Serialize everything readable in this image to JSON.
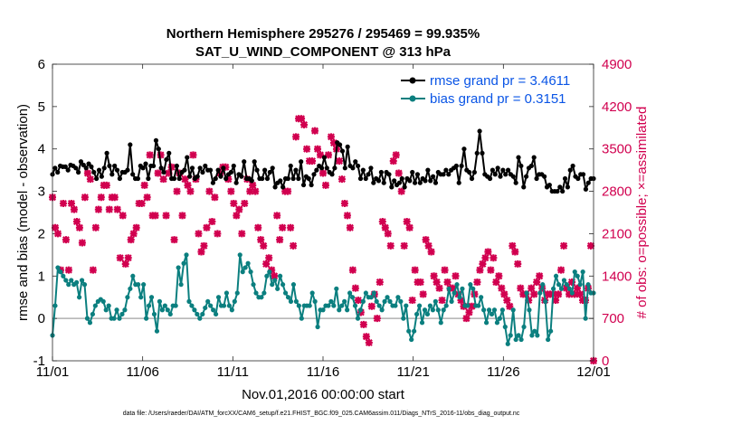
{
  "chart_data": {
    "type": "line",
    "title": "Northern Hemisphere 295276 / 295469 = 99.935%",
    "subtitle": "SAT_U_WIND_COMPONENT @ 313 hPa",
    "xlabel": "Nov.01,2016 00:00:00 start",
    "ylabel": "rmse and bias (model - observation)",
    "ylabel_right": "# of obs: o=possible; ×=assimilated",
    "x_ticks": [
      "11/01",
      "11/06",
      "11/11",
      "11/16",
      "11/21",
      "11/26",
      "12/01"
    ],
    "x_range_days": [
      0,
      30
    ],
    "ylim": [
      -1,
      6
    ],
    "y_ticks": [
      "-1",
      "0",
      "1",
      "2",
      "3",
      "4",
      "5",
      "6"
    ],
    "ylim_right": [
      0,
      4900
    ],
    "y_ticks_right": [
      "0",
      "700",
      "1400",
      "2100",
      "2800",
      "3500",
      "4200",
      "4900"
    ],
    "zero_line": 0,
    "legend_position": "top-right",
    "footer": "data file: /Users/raeder/DAI/ATM_forcXX/CAM6_setup/f.e21.FHIST_BGC.f09_025.CAM6assim.011/Diags_NTrS_2016-11/obs_diag_output.nc",
    "colors": {
      "rmse": "#000000",
      "bias": "#0b7f7f",
      "obs": "#d1004f",
      "legend_text": "#0a55e6",
      "zero_line": "#b0b0b0"
    },
    "series": [
      {
        "name": "rmse grand pr = 3.4611",
        "key": "rmse",
        "values": [
          3.4,
          3.55,
          3.45,
          3.6,
          3.58,
          3.58,
          3.5,
          3.62,
          3.6,
          3.55,
          3.45,
          3.7,
          3.62,
          3.55,
          3.65,
          3.58,
          3.45,
          3.3,
          3.5,
          3.35,
          3.55,
          3.9,
          3.6,
          3.4,
          3.6,
          3.5,
          3.3,
          3.45,
          3.45,
          3.5,
          4.1,
          3.4,
          3.3,
          3.3,
          3.6,
          3.55,
          3.65,
          3.3,
          3.6,
          3.6,
          4.2,
          4.0,
          3.55,
          3.45,
          3.75,
          3.9,
          3.3,
          3.3,
          3.6,
          3.3,
          3.45,
          3.5,
          3.8,
          3.35,
          3.55,
          3.3,
          3.35,
          3.55,
          3.45,
          3.6,
          3.5,
          3.5,
          3.2,
          3.3,
          3.5,
          3.35,
          3.55,
          3.3,
          3.4,
          3.45,
          3.6,
          3.2,
          3.4,
          3.35,
          3.7,
          3.3,
          3.3,
          3.25,
          3.7,
          3.5,
          3.3,
          3.3,
          3.5,
          3.3,
          3.45,
          3.55,
          3.1,
          3.2,
          3.25,
          3.1,
          3.3,
          3.3,
          3.6,
          3.3,
          3.5,
          3.3,
          3.7,
          3.15,
          3.35,
          3.3,
          3.15,
          3.4,
          3.5,
          3.6,
          3.55,
          3.8,
          3.55,
          3.45,
          3.4,
          3.55,
          4.15,
          4.1,
          3.95,
          3.55,
          4.05,
          3.6,
          3.55,
          3.7,
          3.6,
          3.3,
          3.5,
          3.3,
          3.4,
          3.55,
          3.2,
          3.3,
          3.25,
          3.45,
          3.2,
          3.45,
          3.4,
          3.1,
          3.25,
          3.15,
          3.2,
          3.3,
          3.1,
          3.3,
          3.25,
          3.45,
          3.2,
          3.4,
          3.2,
          3.3,
          3.25,
          3.5,
          3.25,
          3.35,
          3.2,
          3.45,
          3.4,
          3.4,
          3.5,
          3.4,
          3.5,
          3.55,
          3.6,
          3.2,
          3.6,
          4.0,
          3.5,
          3.45,
          3.3,
          3.45,
          3.9,
          4.42,
          3.9,
          3.4,
          3.35,
          3.3,
          3.5,
          3.4,
          3.55,
          3.35,
          3.5,
          3.4,
          3.5,
          3.4,
          3.35,
          3.2,
          3.8,
          3.6,
          3.1,
          3.35,
          3.55,
          3.6,
          3.8,
          3.3,
          3.4,
          3.4,
          3.35,
          3.1,
          3.15,
          3.0,
          3.0,
          3.0,
          3.1,
          3.0,
          3.3,
          3.1,
          3.5,
          3.6,
          3.35,
          3.3,
          3.4,
          3.4,
          3.05,
          3.2,
          3.3,
          3.3
        ]
      },
      {
        "name": "bias grand pr = 0.3151",
        "key": "bias",
        "values": [
          -0.4,
          0.3,
          1.2,
          1.1,
          1.0,
          0.9,
          0.8,
          0.9,
          0.8,
          0.85,
          0.5,
          0.9,
          0.8,
          0.0,
          -0.1,
          0.1,
          0.3,
          0.4,
          0.45,
          0.4,
          0.2,
          0.3,
          0.0,
          0.0,
          0.2,
          0.0,
          0.1,
          0.2,
          0.5,
          0.7,
          1.0,
          0.8,
          0.8,
          0.5,
          0.8,
          0.0,
          0.3,
          0.5,
          0.1,
          -0.3,
          0.4,
          0.2,
          0.3,
          0.2,
          0.1,
          0.3,
          0.3,
          1.2,
          0.8,
          1.3,
          1.5,
          0.4,
          0.3,
          0.2,
          0.1,
          0.0,
          0.1,
          0.25,
          0.4,
          0.3,
          0.2,
          0.1,
          0.5,
          0.3,
          0.3,
          0.6,
          0.3,
          0.2,
          0.4,
          0.6,
          1.5,
          1.1,
          1.2,
          1.3,
          1.1,
          0.8,
          0.6,
          0.5,
          0.5,
          0.6,
          1.0,
          1.1,
          0.8,
          0.9,
          0.7,
          1.0,
          0.8,
          0.6,
          0.5,
          0.4,
          0.8,
          0.4,
          0.3,
          0.0,
          0.3,
          0.3,
          0.3,
          0.6,
          0.4,
          -0.2,
          0.2,
          0.2,
          0.3,
          0.3,
          0.4,
          0.3,
          0.7,
          0.2,
          0.3,
          0.4,
          0.2,
          0.6,
          0.5,
          0.3,
          0.0,
          0.2,
          0.4,
          0.6,
          0.5,
          0.5,
          0.6,
          0.4,
          0.3,
          0.2,
          0.4,
          0.5,
          0.4,
          0.3,
          0.3,
          0.5,
          0.4,
          0.0,
          0.3,
          -0.3,
          -0.5,
          -0.3,
          0.1,
          0.3,
          -0.1,
          0.2,
          0.1,
          0.3,
          0.2,
          0.4,
          0.2,
          -0.1,
          0.2,
          0.3,
          0.7,
          0.4,
          0.6,
          0.8,
          0.5,
          0.7,
          0.3,
          0.3,
          0.8,
          0.7,
          0.3,
          0.3,
          0.5,
          0.2,
          -0.1,
          0.2,
          0.1,
          0.2,
          -0.1,
          0.0,
          0.2,
          -0.2,
          -0.6,
          -0.4,
          0.2,
          -0.5,
          -0.4,
          -0.5,
          -0.2,
          0.6,
          0.2,
          -0.4,
          -0.3,
          -0.4,
          0.6,
          0.8,
          0.4,
          -0.5,
          -0.3,
          0.7,
          1.0,
          0.8,
          0.7,
          0.9,
          0.8,
          0.7,
          0.6,
          1.1,
          1.0,
          0.8,
          1.1,
          0.0,
          0.8,
          0.6,
          0.6
        ]
      },
      {
        "name": "assimilated obs",
        "key": "obs",
        "axis": "right",
        "type": "scatter",
        "values": [
          2700,
          2200,
          2100,
          1500,
          2600,
          2000,
          1500,
          2600,
          2500,
          2300,
          2200,
          1950,
          2700,
          3100,
          3000,
          1500,
          2200,
          2500,
          2700,
          2900,
          2900,
          2500,
          2700,
          2700,
          2500,
          1700,
          2400,
          1600,
          1700,
          2000,
          2100,
          2200,
          2600,
          2600,
          2900,
          2700,
          3400,
          2400,
          2400,
          3100,
          3400,
          3000,
          2400,
          3100,
          3200,
          2000,
          2800,
          3100,
          2400,
          3000,
          2900,
          2800,
          3400,
          3000,
          2100,
          1800,
          1900,
          2200,
          2800,
          2300,
          2700,
          2100,
          3100,
          3200,
          3200,
          3000,
          2800,
          2600,
          2400,
          2500,
          2100,
          2600,
          3000,
          2800,
          2900,
          2800,
          2200,
          2000,
          1900,
          1600,
          1700,
          1500,
          1400,
          2400,
          2000,
          2200,
          2800,
          2800,
          2200,
          1900,
          3700,
          4000,
          4000,
          3900,
          3500,
          3300,
          3300,
          3800,
          3500,
          3400,
          3100,
          2900,
          3400,
          3700,
          3600,
          3500,
          3300,
          3000,
          2600,
          2400,
          2200,
          1500,
          1200,
          1000,
          800,
          600,
          400,
          300,
          900,
          1100,
          700,
          1300,
          2300,
          2200,
          2100,
          1900,
          3300,
          3400,
          3100,
          2800,
          1900,
          2300,
          2200,
          1000,
          1500,
          1300,
          1300,
          1100,
          2000,
          1900,
          1800,
          1400,
          1300,
          1200,
          1000,
          1500,
          1300,
          1200,
          1200,
          1400,
          1100,
          1000,
          900,
          700,
          800,
          900,
          1100,
          1300,
          1500,
          1600,
          1700,
          1800,
          1500,
          1700,
          1300,
          1400,
          1200,
          1100,
          1000,
          900,
          1900,
          1800,
          1600,
          1200,
          1100,
          1100,
          1000,
          1200,
          1100,
          1300,
          1400,
          1200,
          1000,
          1100,
          1100,
          1100,
          1000,
          1100,
          1500,
          1900,
          1200,
          1100,
          1300,
          1100,
          1200,
          1100,
          1000,
          1000,
          1200,
          1900,
          0
        ]
      }
    ]
  }
}
